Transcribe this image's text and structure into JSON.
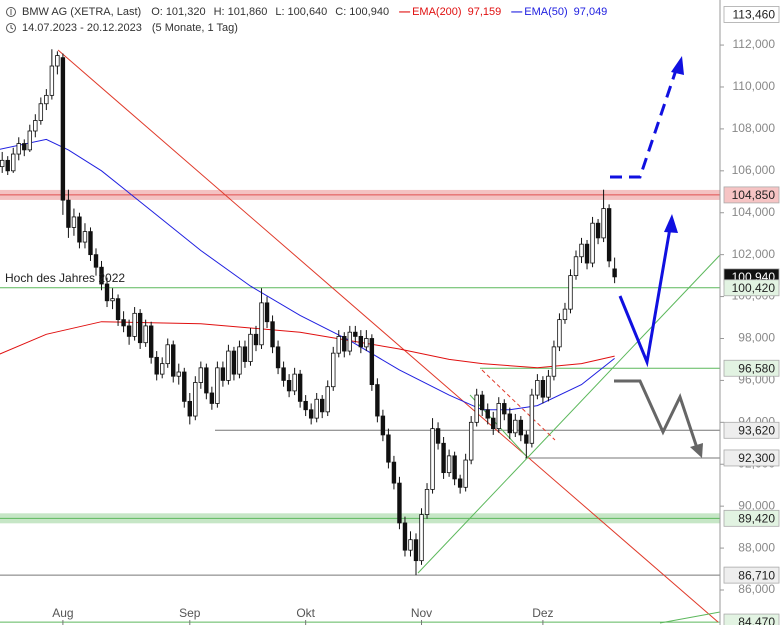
{
  "chart_data": {
    "type": "candlestick",
    "title": "BMW AG (XETRA, Last)",
    "quote": [
      {
        "name": "O:",
        "value": 101320,
        "label": "101,320"
      },
      {
        "name": "H:",
        "value": 101860,
        "label": "101,860"
      },
      {
        "name": "L:",
        "value": 100640,
        "label": "100,640"
      },
      {
        "name": "C:",
        "value": 100940,
        "label": "100,940"
      }
    ],
    "period": "14.07.2023 - 20.12.2023",
    "period_note": "(5 Monate, 1 Tag)",
    "annotation": "Hoch des Jahres 2022",
    "up_color": "#ffffff",
    "down_color": "#111111",
    "candles": [
      [
        106000,
        106600,
        105700,
        106200
      ],
      [
        106200,
        106900,
        105900,
        106500
      ],
      [
        106500,
        106700,
        105800,
        106000
      ],
      [
        106000,
        107100,
        105900,
        106800
      ],
      [
        106800,
        107600,
        106500,
        107300
      ],
      [
        107300,
        107500,
        106700,
        107000
      ],
      [
        107000,
        108200,
        106900,
        107900
      ],
      [
        107900,
        108700,
        107600,
        108400
      ],
      [
        108400,
        109500,
        108200,
        109200
      ],
      [
        109200,
        109900,
        108900,
        109600
      ],
      [
        109600,
        111800,
        109400,
        111000
      ],
      [
        111000,
        111700,
        110600,
        111500
      ],
      [
        111400,
        111600,
        103900,
        104600
      ],
      [
        104600,
        105100,
        102800,
        103300
      ],
      [
        103300,
        104200,
        102900,
        103800
      ],
      [
        103800,
        104000,
        102300,
        102600
      ],
      [
        102600,
        103500,
        102300,
        103100
      ],
      [
        103100,
        103300,
        101700,
        102000
      ],
      [
        102000,
        102300,
        101000,
        101400
      ],
      [
        101400,
        101700,
        100300,
        100600
      ],
      [
        100600,
        100900,
        99500,
        99800
      ],
      [
        99800,
        100400,
        99400,
        99900
      ],
      [
        99900,
        100100,
        98600,
        98900
      ],
      [
        98900,
        99300,
        98300,
        98600
      ],
      [
        98600,
        98900,
        97700,
        98100
      ],
      [
        98100,
        99500,
        97900,
        99200
      ],
      [
        99200,
        99400,
        97500,
        97800
      ],
      [
        97800,
        98900,
        97600,
        98600
      ],
      [
        98600,
        98800,
        96800,
        97100
      ],
      [
        97100,
        97400,
        96000,
        96300
      ],
      [
        96300,
        97100,
        96100,
        96800
      ],
      [
        96800,
        98000,
        96600,
        97700
      ],
      [
        97700,
        97900,
        95900,
        96200
      ],
      [
        96200,
        96800,
        95800,
        96400
      ],
      [
        96400,
        96600,
        94700,
        95000
      ],
      [
        95000,
        95400,
        93900,
        94300
      ],
      [
        94300,
        96200,
        94100,
        95900
      ],
      [
        95900,
        96900,
        95600,
        96600
      ],
      [
        96600,
        96800,
        95100,
        95400
      ],
      [
        95400,
        95700,
        94600,
        94900
      ],
      [
        94900,
        96900,
        94700,
        96600
      ],
      [
        96600,
        96900,
        95700,
        96000
      ],
      [
        96000,
        97700,
        95800,
        97400
      ],
      [
        97400,
        97600,
        96000,
        96300
      ],
      [
        96300,
        97900,
        96100,
        97600
      ],
      [
        97600,
        97900,
        96600,
        96900
      ],
      [
        96900,
        98500,
        96700,
        98200
      ],
      [
        98200,
        98600,
        97400,
        97700
      ],
      [
        97700,
        100400,
        97500,
        99700
      ],
      [
        99700,
        100000,
        98500,
        98800
      ],
      [
        98800,
        99100,
        97300,
        97600
      ],
      [
        97600,
        97900,
        96300,
        96600
      ],
      [
        96600,
        96900,
        95700,
        96000
      ],
      [
        96000,
        96300,
        95200,
        95500
      ],
      [
        95500,
        96600,
        95300,
        96300
      ],
      [
        96300,
        96500,
        94700,
        95000
      ],
      [
        95000,
        95300,
        94300,
        94600
      ],
      [
        94600,
        94900,
        93900,
        94200
      ],
      [
        94200,
        95400,
        94000,
        95100
      ],
      [
        95100,
        95300,
        94200,
        94500
      ],
      [
        94500,
        96000,
        94300,
        95700
      ],
      [
        95700,
        97600,
        95500,
        97300
      ],
      [
        97300,
        98400,
        97100,
        98100
      ],
      [
        98100,
        98300,
        97100,
        97400
      ],
      [
        97400,
        98600,
        97200,
        98300
      ],
      [
        98300,
        98600,
        97800,
        98100
      ],
      [
        98100,
        98400,
        97300,
        97600
      ],
      [
        97600,
        98400,
        97400,
        98000
      ],
      [
        98000,
        98200,
        95500,
        95800
      ],
      [
        95800,
        96100,
        94000,
        94300
      ],
      [
        94300,
        94600,
        93100,
        93400
      ],
      [
        93400,
        93700,
        91800,
        92100
      ],
      [
        92100,
        92400,
        90800,
        91100
      ],
      [
        91100,
        91400,
        88900,
        89200
      ],
      [
        89200,
        89500,
        87600,
        87900
      ],
      [
        87900,
        88800,
        87600,
        88400
      ],
      [
        88400,
        88700,
        86710,
        87400
      ],
      [
        87400,
        89900,
        87200,
        89600
      ],
      [
        89600,
        91100,
        89400,
        90800
      ],
      [
        90800,
        94200,
        90600,
        93700
      ],
      [
        93700,
        94000,
        92700,
        93000
      ],
      [
        93000,
        93300,
        91300,
        91600
      ],
      [
        91600,
        92700,
        91400,
        92400
      ],
      [
        92400,
        92600,
        91000,
        91300
      ],
      [
        91300,
        91500,
        90600,
        90900
      ],
      [
        90900,
        92500,
        90700,
        92200
      ],
      [
        92200,
        94300,
        92000,
        94000
      ],
      [
        94000,
        95600,
        93800,
        95300
      ],
      [
        95300,
        95500,
        94300,
        94600
      ],
      [
        94600,
        94900,
        93900,
        94200
      ],
      [
        94200,
        94500,
        93400,
        93700
      ],
      [
        93700,
        95200,
        93500,
        94900
      ],
      [
        94900,
        95100,
        94100,
        94400
      ],
      [
        94400,
        94700,
        93200,
        93500
      ],
      [
        93500,
        94400,
        93300,
        94100
      ],
      [
        94100,
        94300,
        93100,
        93400
      ],
      [
        93400,
        93600,
        92300,
        93000
      ],
      [
        93000,
        95600,
        92800,
        95300
      ],
      [
        95300,
        96300,
        95100,
        96000
      ],
      [
        96000,
        96200,
        94900,
        95200
      ],
      [
        95200,
        96500,
        95000,
        96200
      ],
      [
        96200,
        97900,
        96000,
        97600
      ],
      [
        97600,
        99200,
        97400,
        98900
      ],
      [
        98900,
        99700,
        98700,
        99400
      ],
      [
        99400,
        101300,
        99200,
        101000
      ],
      [
        101000,
        102200,
        100800,
        101900
      ],
      [
        101900,
        102800,
        101600,
        102500
      ],
      [
        102500,
        102700,
        101300,
        101600
      ],
      [
        101600,
        103800,
        101400,
        103500
      ],
      [
        103500,
        103700,
        102500,
        102800
      ],
      [
        102800,
        105100,
        102600,
        104200
      ],
      [
        104200,
        104400,
        101400,
        101700
      ],
      [
        101320,
        101860,
        100640,
        100940
      ]
    ],
    "series": [
      {
        "name": "EMA(200)",
        "color": "#e01010",
        "last": 97159,
        "last_label": "97,159",
        "x": [
          0,
          9,
          19,
          28,
          37,
          46,
          55,
          64,
          73,
          82,
          88,
          93,
          98,
          106,
          112
        ],
        "values": [
          97200,
          98200,
          98800,
          98750,
          98700,
          98500,
          98300,
          97900,
          97500,
          97000,
          96800,
          96700,
          96600,
          96800,
          97159
        ]
      },
      {
        "name": "EMA(50)",
        "color": "#2020e0",
        "last": 97049,
        "last_label": "97,049",
        "x": [
          0,
          9,
          13,
          19,
          28,
          37,
          46,
          55,
          64,
          73,
          82,
          88,
          93,
          98,
          106,
          112
        ],
        "values": [
          107000,
          107500,
          107000,
          106000,
          104100,
          102200,
          100500,
          99100,
          97900,
          96500,
          95300,
          94600,
          94600,
          94800,
          95800,
          97049
        ]
      }
    ],
    "xlim": [
      0.6,
      131.1
    ],
    "xticks": [
      {
        "value": 12,
        "label": "Aug"
      },
      {
        "value": 35,
        "label": "Sep"
      },
      {
        "value": 56,
        "label": "Okt"
      },
      {
        "value": 77,
        "label": "Nov"
      },
      {
        "value": 99,
        "label": "Dez"
      }
    ],
    "ylim": [
      84330,
      114150
    ],
    "yticks": [
      {
        "value": 86000,
        "label": "86,000"
      },
      {
        "value": 88000,
        "label": "88,000"
      },
      {
        "value": 90000,
        "label": "90,000"
      },
      {
        "value": 92000,
        "label": "92,000"
      },
      {
        "value": 94000,
        "label": "94,000"
      },
      {
        "value": 96000,
        "label": "96,000"
      },
      {
        "value": 98000,
        "label": "98,000"
      },
      {
        "value": 100000,
        "label": "100,000"
      },
      {
        "value": 102000,
        "label": "102,000"
      },
      {
        "value": 104000,
        "label": "104,000"
      },
      {
        "value": 106000,
        "label": "106,000"
      },
      {
        "value": 108000,
        "label": "108,000"
      },
      {
        "value": 110000,
        "label": "110,000"
      },
      {
        "value": 112000,
        "label": "112,000"
      }
    ],
    "levels": [
      {
        "value": 113460,
        "label": "113,460",
        "line": null,
        "band": false,
        "box": "#ffffff",
        "text_color": "#222222"
      },
      {
        "value": 104850,
        "label": "104,850",
        "line": "#e05050",
        "band": true,
        "box": "#f6c4c4",
        "text_color": "#222222"
      },
      {
        "value": 100940,
        "label": "100,940",
        "line": null,
        "band": false,
        "box": "#111111",
        "text_color": "#ffffff"
      },
      {
        "value": 100420,
        "label": "100,420",
        "line": "#5cb85c",
        "band": false,
        "box": "#e2f3e2",
        "text_color": "#222222"
      },
      {
        "value": 96580,
        "label": "96,580",
        "line": "#5cb85c",
        "band": false,
        "box": "#e2f3e2",
        "text_color": "#222222"
      },
      {
        "value": 93620,
        "label": "93,620",
        "line": "#777777",
        "band": false,
        "box": "#eeeeee",
        "text_color": "#222222"
      },
      {
        "value": 92300,
        "label": "92,300",
        "line": "#777777",
        "band": false,
        "box": "#eeeeee",
        "text_color": "#222222"
      },
      {
        "value": 89420,
        "label": "89,420",
        "line": "#5cb85c",
        "band": true,
        "box": "#e2f3e2",
        "text_color": "#222222"
      },
      {
        "value": 86710,
        "label": "86,710",
        "line": "#777777",
        "band": false,
        "box": "#eeeeee",
        "text_color": "#222222"
      },
      {
        "value": 84470,
        "label": "84,470",
        "line": "#5cb85c",
        "band": false,
        "box": "#e2f3e2",
        "text_color": "#222222"
      }
    ]
  }
}
